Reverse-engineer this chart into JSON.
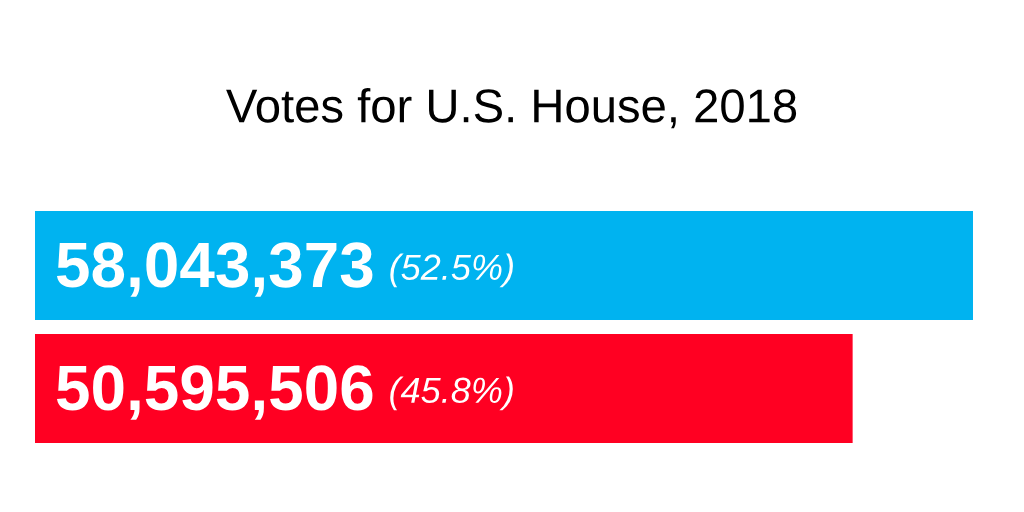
{
  "chart_data": {
    "type": "bar",
    "orientation": "horizontal",
    "title": "Votes for U.S. House, 2018",
    "categories": [
      null,
      null
    ],
    "values": [
      58043373,
      50595506
    ],
    "colors": [
      "#00b3f0",
      "#ff0022"
    ],
    "data_labels": true,
    "value_labels": [
      "58,043,373",
      "50,595,506"
    ],
    "annotations": [
      "(52.5%)",
      "(45.8%)"
    ],
    "tick_labels": false,
    "grid": false
  }
}
